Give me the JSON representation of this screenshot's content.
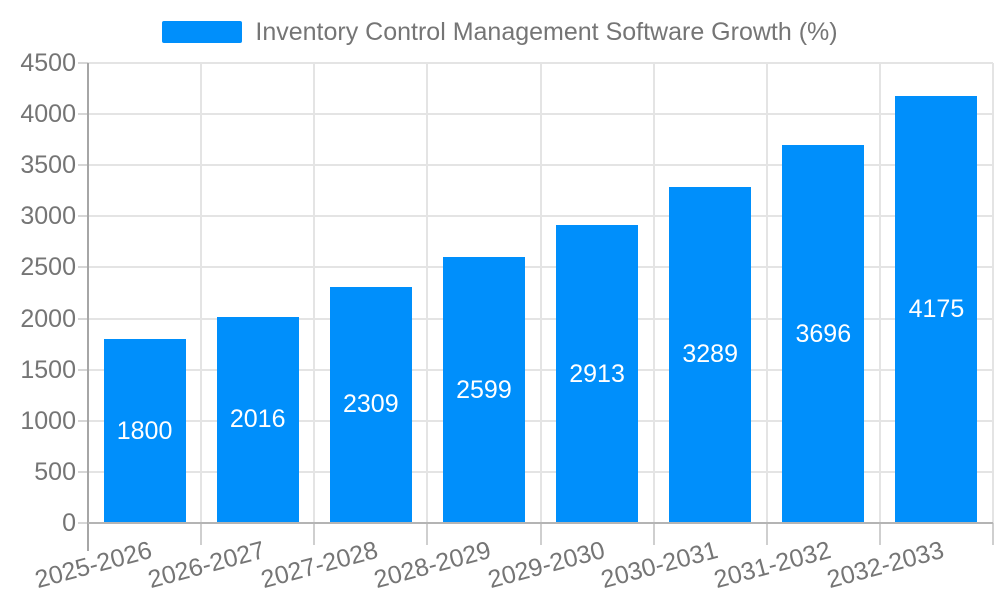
{
  "legend": {
    "label": "Inventory Control Management Software Growth (%)"
  },
  "colors": {
    "bar": "#008FFB",
    "axis_text": "#757575",
    "grid_line": "#e4e4e4",
    "y_axis_line": "#a6a6a6",
    "x_axis_line": "#b4b4b4",
    "value_label": "#ffffff"
  },
  "chart_data": {
    "type": "bar",
    "title": "Inventory Control Management Software Growth (%)",
    "categories": [
      "2025-2026",
      "2026-2027",
      "2027-2028",
      "2028-2029",
      "2029-2030",
      "2030-2031",
      "2031-2032",
      "2032-2033"
    ],
    "series": [
      {
        "name": "Inventory Control Management Software Growth (%)",
        "values": [
          1800,
          2016,
          2309,
          2599,
          2913,
          3289,
          3696,
          4175
        ]
      }
    ],
    "value_labels": [
      1800,
      2016,
      2309,
      2599,
      2913,
      3289,
      3696,
      4175
    ],
    "xlabel": "",
    "ylabel": "",
    "ylim": [
      0,
      4500
    ],
    "ytick_step": 500,
    "yticks": [
      0,
      500,
      1000,
      1500,
      2000,
      2500,
      3000,
      3500,
      4000,
      4500
    ],
    "grid": true,
    "legend_position": "top",
    "value_label_position": "inside-center",
    "x_label_rotation_deg": -15
  }
}
